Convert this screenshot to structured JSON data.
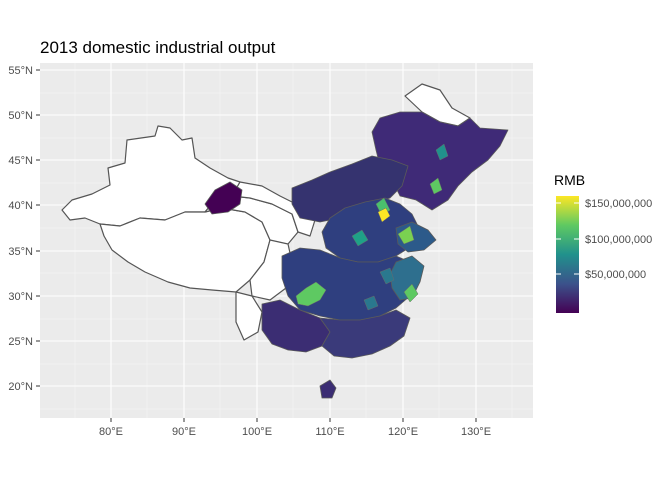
{
  "title": "2013 domestic industrial output",
  "legend": {
    "title": "RMB",
    "labels": [
      "$150,000,000",
      "$100,000,000",
      "$50,000,000"
    ],
    "values": [
      150000000,
      100000000,
      50000000
    ],
    "colors": [
      "#fde725",
      "#5ec962",
      "#21918c",
      "#3b528b",
      "#440154"
    ]
  },
  "axes": {
    "lat_labels": [
      "55°N",
      "50°N",
      "45°N",
      "40°N",
      "35°N",
      "30°N",
      "25°N",
      "20°N"
    ],
    "lat_values": [
      55,
      50,
      45,
      40,
      35,
      30,
      25,
      20
    ],
    "lon_labels": [
      "80°E",
      "90°E",
      "100°E",
      "110°E",
      "120°E",
      "130°E"
    ],
    "lon_values": [
      80,
      90,
      100,
      110,
      120,
      130
    ]
  },
  "colors": {
    "panel_bg": "#ebebeb",
    "grid": "#ffffff",
    "border": "#555555",
    "no_data": "#ffffff"
  }
}
